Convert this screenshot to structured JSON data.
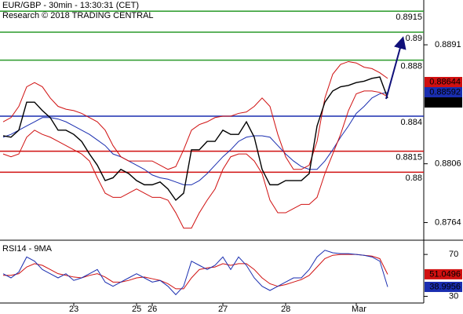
{
  "chart_data": [
    {
      "type": "line",
      "title": "EUR/GBP - 30min - 13:30:31 (CET)",
      "subtitle": "Research © 2018 TRADING CENTRAL",
      "categories": [
        null,
        null,
        null,
        null,
        null,
        null,
        null,
        null,
        null,
        "23",
        null,
        null,
        null,
        null,
        null,
        null,
        null,
        "25",
        null,
        "26",
        null,
        null,
        null,
        null,
        null,
        null,
        null,
        null,
        "27",
        null,
        null,
        null,
        null,
        null,
        null,
        null,
        "28",
        null,
        null,
        null,
        null,
        null,
        null,
        null,
        null,
        "Mar",
        null,
        null,
        null,
        null
      ],
      "ylim": [
        0.87514,
        0.8923
      ],
      "yticks": [
        0.8891,
        0.8806,
        0.8764
      ],
      "series": [
        {
          "color": "#000000",
          "values": [
            0.8826,
            0.8825,
            0.883,
            0.885,
            0.885,
            0.8844,
            0.8839,
            0.883,
            0.883,
            0.8827,
            0.8822,
            0.8813,
            0.8805,
            0.8794,
            0.8796,
            0.8802,
            0.8799,
            0.8794,
            0.8791,
            0.8791,
            0.8793,
            0.8788,
            0.878,
            0.8785,
            0.8816,
            0.8816,
            0.8822,
            0.8822,
            0.883,
            0.8827,
            0.8827,
            0.8836,
            0.8825,
            0.8802,
            0.8791,
            0.8791,
            0.8794,
            0.8794,
            0.8794,
            0.8799,
            0.8833,
            0.885,
            0.8858,
            0.8861,
            0.8862,
            0.8864,
            0.8865,
            0.8867,
            0.8868,
            0.8853
          ]
        },
        {
          "color": "#d01010",
          "values": [
            0.8836,
            0.8839,
            0.8847,
            0.8861,
            0.8864,
            0.8861,
            0.8853,
            0.8847,
            0.8845,
            0.8844,
            0.8842,
            0.8839,
            0.8836,
            0.883,
            0.8819,
            0.8811,
            0.8808,
            0.8808,
            0.8808,
            0.8808,
            0.8805,
            0.8802,
            0.8804,
            0.8816,
            0.883,
            0.8834,
            0.8836,
            0.8839,
            0.884,
            0.884,
            0.8842,
            0.8843,
            0.8847,
            0.8853,
            0.8847,
            0.8827,
            0.8811,
            0.8802,
            0.8802,
            0.8805,
            0.8822,
            0.8853,
            0.887,
            0.8877,
            0.8879,
            0.8878,
            0.8875,
            0.8874,
            0.8871,
            0.8867
          ]
        },
        {
          "color": "#d01010",
          "values": [
            0.8813,
            0.8811,
            0.8813,
            0.8825,
            0.883,
            0.8827,
            0.8825,
            0.8822,
            0.8819,
            0.8816,
            0.8813,
            0.8808,
            0.8796,
            0.8785,
            0.8782,
            0.8782,
            0.8785,
            0.8788,
            0.8785,
            0.8782,
            0.8782,
            0.878,
            0.8771,
            0.876,
            0.876,
            0.8771,
            0.878,
            0.8788,
            0.8802,
            0.8811,
            0.8813,
            0.8813,
            0.8808,
            0.8799,
            0.878,
            0.8771,
            0.8771,
            0.8774,
            0.8777,
            0.8777,
            0.8782,
            0.8799,
            0.8813,
            0.8827,
            0.8844,
            0.8856,
            0.8858,
            0.8858,
            0.8857,
            0.8854
          ]
        },
        {
          "color": "#1a2eb0",
          "values": [
            0.8825,
            0.8827,
            0.883,
            0.8833,
            0.8836,
            0.8839,
            0.8839,
            0.8838,
            0.8836,
            0.8833,
            0.883,
            0.8827,
            0.8823,
            0.8819,
            0.8813,
            0.8811,
            0.8808,
            0.8805,
            0.8802,
            0.8798,
            0.8796,
            0.8795,
            0.8793,
            0.8791,
            0.8791,
            0.8794,
            0.8799,
            0.8805,
            0.8811,
            0.8816,
            0.8822,
            0.8825,
            0.8826,
            0.8826,
            0.8825,
            0.8819,
            0.8813,
            0.8808,
            0.8804,
            0.8802,
            0.8802,
            0.8808,
            0.8816,
            0.8825,
            0.8833,
            0.8842,
            0.8847,
            0.8853,
            0.8856,
            0.8857
          ]
        }
      ],
      "levels": [
        {
          "value": 0.8915,
          "color": "#2a9a2a"
        },
        {
          "value": 0.89,
          "color": "#2a9a2a"
        },
        {
          "value": 0.888,
          "color": "#2a9a2a"
        },
        {
          "value": 0.884,
          "color": "#1a2eb0"
        },
        {
          "value": 0.8815,
          "color": "#d01010"
        },
        {
          "value": 0.88,
          "color": "#d01010"
        }
      ],
      "last_values": [
        {
          "value": 0.88644,
          "color": "#d01010"
        },
        {
          "value": 0.88592,
          "color": "#1a2eb0"
        },
        {
          "value": 0.8852,
          "color": "#000000"
        }
      ]
    },
    {
      "type": "line",
      "title": "RSI14 - 9MA",
      "ylim": [
        23.6,
        83.6
      ],
      "yticks": [
        70,
        30
      ],
      "series": [
        {
          "color": "#1a2eb0",
          "values": [
            51.6,
            47.6,
            53.2,
            67.6,
            63.6,
            55.6,
            51.6,
            47.6,
            51.6,
            45.2,
            47.6,
            51.6,
            55.6,
            43.6,
            39.6,
            43.6,
            47.6,
            51.6,
            47.6,
            43.6,
            45.2,
            39.6,
            31.6,
            39.6,
            63.6,
            59.6,
            55.6,
            59.6,
            67.6,
            55.6,
            67.6,
            59.6,
            47.6,
            39.6,
            35.6,
            39.6,
            43.6,
            47.6,
            47.6,
            55.6,
            67.6,
            74,
            71.6,
            70.8,
            70.8,
            70,
            69.2,
            67.6,
            63.6,
            39.0
          ]
        },
        {
          "color": "#d01010",
          "values": [
            50,
            50,
            51.6,
            58,
            61.2,
            59.6,
            55.6,
            51.6,
            50,
            48.4,
            47.6,
            50,
            51.6,
            48.4,
            43.6,
            43.6,
            45.2,
            47.6,
            48.4,
            46.8,
            45.2,
            42,
            37.2,
            37.2,
            47.6,
            55.6,
            57.2,
            58,
            61.2,
            59.6,
            61.2,
            61.2,
            55.6,
            47.6,
            42,
            39.6,
            41.2,
            43.6,
            46,
            50,
            58,
            66,
            69.2,
            70,
            70,
            70,
            69.2,
            68.4,
            66,
            51.0
          ]
        }
      ],
      "last_values": [
        {
          "value": 51.0496,
          "color": "#d01010"
        },
        {
          "value": 38.9956,
          "color": "#1a2eb0"
        }
      ]
    }
  ]
}
